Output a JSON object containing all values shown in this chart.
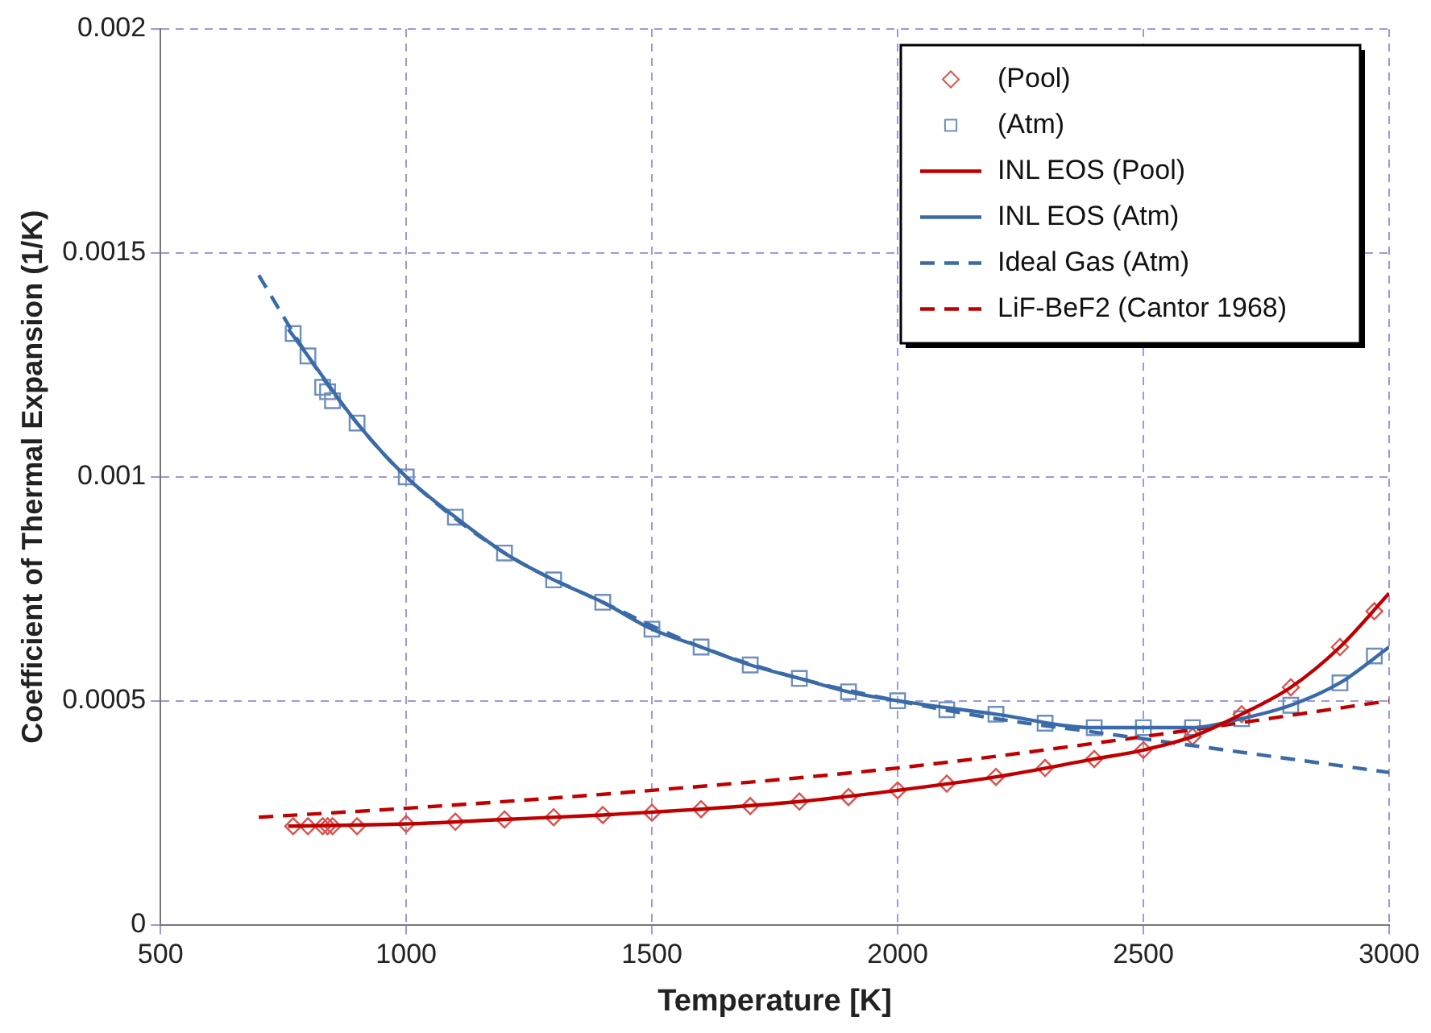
{
  "chart_data": {
    "type": "scatter",
    "xlabel": "Temperature [K]",
    "ylabel": "Coefficient of Thermal Expansion (1/K)",
    "xlim": [
      500,
      3000
    ],
    "xticks": [
      500,
      1000,
      1500,
      2000,
      2500,
      3000
    ],
    "ylim": [
      0,
      0.002
    ],
    "yticks": [
      0,
      0.0005,
      0.001,
      0.0015,
      0.002
    ],
    "grid": true,
    "legend": "top right",
    "series": [
      {
        "name": "(Pool)",
        "type": "scatter",
        "marker": "diamond",
        "color": "#d9534f",
        "x": [
          770,
          800,
          830,
          840,
          850,
          900,
          1000,
          1100,
          1200,
          1300,
          1400,
          1500,
          1600,
          1700,
          1800,
          1900,
          2000,
          2100,
          2200,
          2300,
          2400,
          2500,
          2600,
          2700,
          2800,
          2900,
          2970
        ],
        "values": [
          0.00022,
          0.00022,
          0.00022,
          0.00022,
          0.00022,
          0.00022,
          0.000225,
          0.00023,
          0.000235,
          0.00024,
          0.000245,
          0.00025,
          0.000258,
          0.000265,
          0.000275,
          0.000285,
          0.0003,
          0.000315,
          0.00033,
          0.00035,
          0.00037,
          0.00039,
          0.00042,
          0.00047,
          0.00053,
          0.00062,
          0.0007
        ]
      },
      {
        "name": "(Atm)",
        "type": "scatter",
        "marker": "square",
        "color": "#6d8fbf",
        "x": [
          770,
          800,
          830,
          840,
          850,
          900,
          1000,
          1100,
          1200,
          1300,
          1400,
          1500,
          1600,
          1700,
          1800,
          1900,
          2000,
          2100,
          2200,
          2300,
          2400,
          2500,
          2600,
          2700,
          2800,
          2900,
          2970
        ],
        "values": [
          0.00132,
          0.00127,
          0.0012,
          0.00119,
          0.00117,
          0.00112,
          0.001,
          0.00091,
          0.00083,
          0.00077,
          0.00072,
          0.00066,
          0.00062,
          0.00058,
          0.00055,
          0.00052,
          0.0005,
          0.00048,
          0.00047,
          0.00045,
          0.00044,
          0.00044,
          0.00044,
          0.00046,
          0.00049,
          0.00054,
          0.0006
        ]
      },
      {
        "name": "INL EOS (Pool)",
        "type": "line",
        "marker": "none",
        "line_style": "solid",
        "color": "#c00000",
        "x": [
          760,
          1000,
          1200,
          1400,
          1600,
          1800,
          2000,
          2200,
          2400,
          2500,
          2600,
          2700,
          2800,
          2900,
          3000
        ],
        "values": [
          0.00022,
          0.000225,
          0.000235,
          0.000245,
          0.000258,
          0.000275,
          0.0003,
          0.00033,
          0.00037,
          0.00039,
          0.00042,
          0.00047,
          0.00053,
          0.00062,
          0.00074
        ]
      },
      {
        "name": "INL EOS (Atm)",
        "type": "line",
        "marker": "none",
        "line_style": "solid",
        "color": "#3a6aa8",
        "x": [
          760,
          800,
          900,
          1000,
          1100,
          1200,
          1300,
          1400,
          1500,
          1600,
          1700,
          1800,
          1900,
          2000,
          2200,
          2400,
          2500,
          2600,
          2700,
          2800,
          2900,
          3000
        ],
        "values": [
          0.00133,
          0.00127,
          0.00112,
          0.001,
          0.00091,
          0.00083,
          0.00077,
          0.00072,
          0.00066,
          0.00062,
          0.00058,
          0.00055,
          0.00052,
          0.0005,
          0.00047,
          0.00044,
          0.00044,
          0.00044,
          0.00046,
          0.00049,
          0.00054,
          0.00062
        ]
      },
      {
        "name": "Ideal Gas (Atm)",
        "type": "line",
        "marker": "none",
        "line_style": "dashed",
        "color": "#3a6aa8",
        "x": [
          700,
          800,
          900,
          1000,
          1200,
          1400,
          1600,
          1800,
          2000,
          2200,
          2400,
          2600,
          2800,
          3000
        ],
        "values": [
          0.00145,
          0.00127,
          0.00112,
          0.001,
          0.00083,
          0.00072,
          0.00062,
          0.00055,
          0.0005,
          0.00046,
          0.00043,
          0.0004,
          0.00037,
          0.00034
        ]
      },
      {
        "name": "LiF-BeF2 (Cantor 1968)",
        "type": "line",
        "marker": "none",
        "line_style": "dashed",
        "color": "#c00000",
        "x": [
          700,
          1000,
          1500,
          2000,
          2500,
          3000
        ],
        "values": [
          0.00024,
          0.00026,
          0.0003,
          0.00035,
          0.00042,
          0.0005
        ]
      }
    ]
  }
}
